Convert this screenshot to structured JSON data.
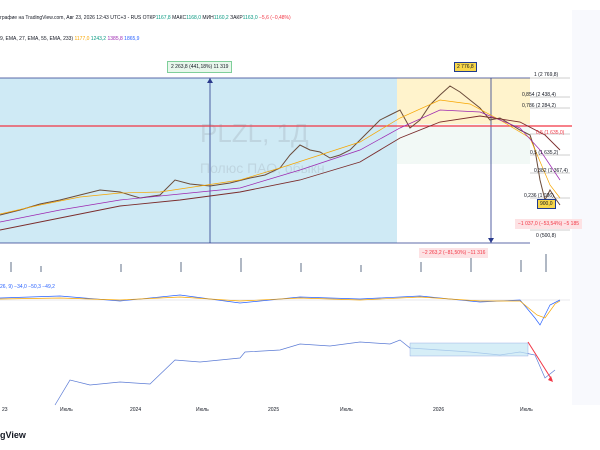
{
  "header": {
    "line1_prefix": "графие на TradingView.com, Авг 23, 2026 12:43 UTC+3",
    "line1_sym": " - RUS ",
    "open_label": "ОТКР",
    "open_value": "1167,8",
    "high_label": "МАКС",
    "high_value": "1168,0",
    "low_label": "МИН",
    "low_value": "1160,2",
    "close_label": "ЗАКР",
    "close_value": "1163,0",
    "change": "−5,6 (−0,48%)",
    "ema_line": "9, EMA, 27, EMA, 55, EMA, 233)",
    "ema_values": [
      "1177,0",
      "1243,2",
      "1385,8",
      "1865,9"
    ]
  },
  "watermark": {
    "ticker": "PLZL, 1Д",
    "name": "Полюс ПАО, обыкн."
  },
  "measure_labels": {
    "rise": "2 263,8 (441,18%) 11 319",
    "fall": "−2 263,2 (−81,50%) −11 316",
    "drop": "−1 037,0 (−53,54%) −5 185"
  },
  "price_tags": {
    "peak": "2 776,8",
    "low": "900,0"
  },
  "fib_levels": [
    {
      "label": "1 (2 769,8)"
    },
    {
      "label": "0,854 (2 438,4)"
    },
    {
      "label": "0,786 (2 284,2)"
    },
    {
      "label": "0,5 (1 635,0)"
    },
    {
      "label": "0,5 (1 635,2)"
    },
    {
      "label": "0,382 (1 367,4)"
    },
    {
      "label": "0,236 (1 036)"
    },
    {
      "label": "0 (500,8)"
    }
  ],
  "oscillator_label": "26, 9)  −34,0  −50,3  −49,2",
  "time_axis": [
    "23",
    "Июль",
    "2024",
    "Июль",
    "2025",
    "Июль",
    "2026",
    "Июль"
  ],
  "footer_brand": "gView",
  "colors": {
    "up": "#089981",
    "down": "#f23645",
    "blue_zone": "#c5e8f4",
    "yellow_zone": "#fff6d6",
    "ema_fast": "#f7a600",
    "ema_slow": "#9c27b0"
  }
}
